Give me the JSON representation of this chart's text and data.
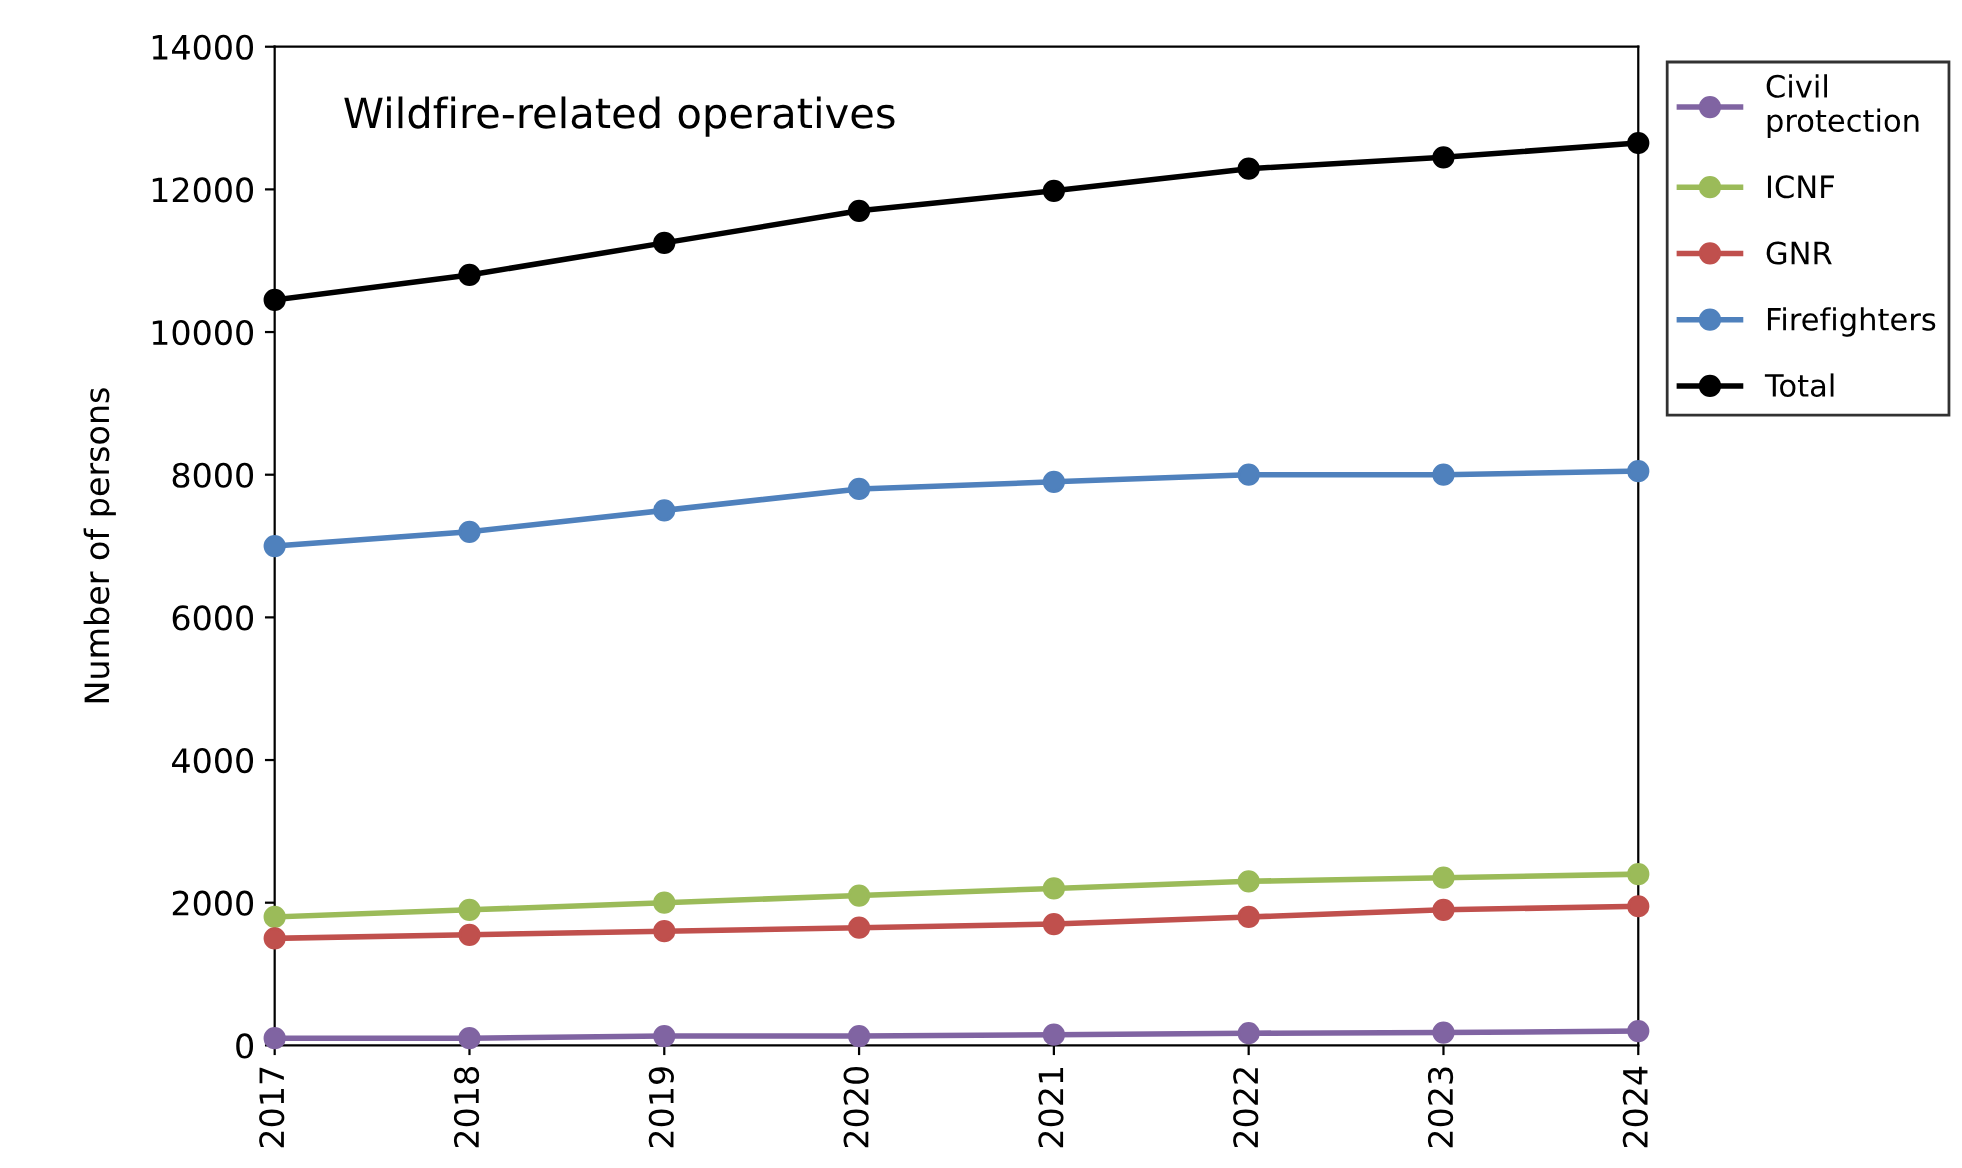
{
  "chart_data": {
    "type": "line",
    "title": "Wildfire-related operatives",
    "ylabel": "Number of persons",
    "categories": [
      "2017",
      "2018",
      "2019",
      "2020",
      "2021",
      "2022",
      "2023",
      "2024"
    ],
    "series": [
      {
        "name": "Civil protection",
        "color": "#8064a2",
        "values": [
          100,
          100,
          130,
          130,
          150,
          170,
          180,
          200
        ]
      },
      {
        "name": "ICNF",
        "color": "#9bbb59",
        "values": [
          1800,
          1900,
          2000,
          2100,
          2200,
          2300,
          2350,
          2400
        ]
      },
      {
        "name": "GNR",
        "color": "#c0504d",
        "values": [
          1500,
          1550,
          1600,
          1650,
          1700,
          1800,
          1900,
          1950
        ]
      },
      {
        "name": "Firefighters",
        "color": "#4f81bd",
        "values": [
          7000,
          7200,
          7500,
          7800,
          7900,
          8000,
          8000,
          8050
        ]
      },
      {
        "name": "Total",
        "color": "#000000",
        "values": [
          10450,
          10800,
          11250,
          11700,
          11980,
          12290,
          12450,
          12650
        ]
      }
    ],
    "ylim": [
      0,
      14000
    ],
    "yticks": [
      0,
      2000,
      4000,
      6000,
      8000,
      10000,
      12000,
      14000
    ],
    "grid": false,
    "legend": "right",
    "marker": "circle",
    "line_style": "solid"
  }
}
